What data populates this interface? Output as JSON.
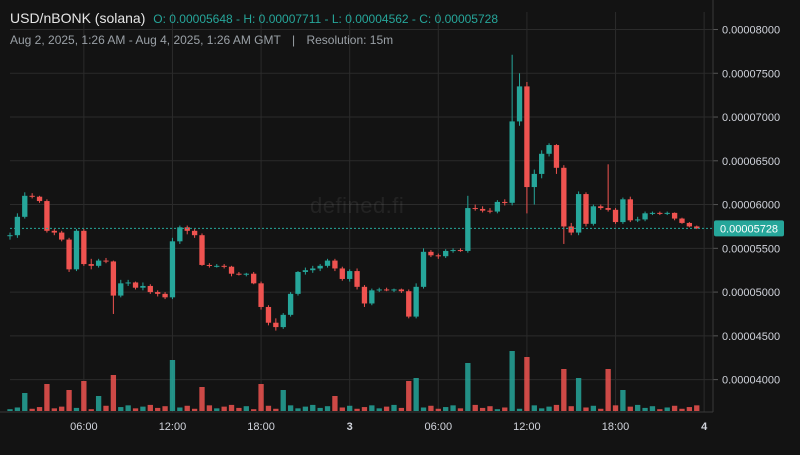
{
  "header": {
    "symbol": "USD/nBONK (solana)",
    "ohlc": "O: 0.00005648 - H: 0.00007711 - L: 0.00004562 - C: 0.00005728",
    "date_range": "Aug 2, 2025, 1:26 AM - Aug 4, 2025, 1:26 AM GMT",
    "separator": "|",
    "resolution": "Resolution: 15m"
  },
  "watermark": "defined.fi",
  "colors": {
    "up": "#26a69a",
    "down": "#ef5350",
    "grid": "#2b2b2b",
    "background": "#131313",
    "axis_text": "#d1d4dc",
    "last_price_bg": "#26a69a"
  },
  "chart_data": {
    "type": "candlestick",
    "title": "USD/nBONK (solana)",
    "y_ticks": [
      "0.00008000",
      "0.00007500",
      "0.00007000",
      "0.00006500",
      "0.00006000",
      "0.00005500",
      "0.00005000",
      "0.00004500",
      "0.00004000"
    ],
    "x_ticks": [
      "06:00",
      "12:00",
      "18:00",
      "3",
      "06:00",
      "12:00",
      "18:00",
      "4"
    ],
    "x_tick_hours": [
      6,
      12,
      18,
      24,
      30,
      36,
      42,
      48
    ],
    "x_range_hours": [
      1.0,
      48.6
    ],
    "ylim": [
      3.63e-05,
      8.2e-05
    ],
    "grid": true,
    "last_price": 5.728e-05,
    "last_price_label": "0.00005728",
    "candles": [
      {
        "t": 1.0,
        "o": 5.648e-05,
        "h": 5.68e-05,
        "l": 5.6e-05,
        "c": 5.65e-05
      },
      {
        "t": 1.5,
        "o": 5.65e-05,
        "h": 5.9e-05,
        "l": 5.62e-05,
        "c": 5.86e-05
      },
      {
        "t": 2.0,
        "o": 5.86e-05,
        "h": 6.14e-05,
        "l": 5.84e-05,
        "c": 6.1e-05
      },
      {
        "t": 2.5,
        "o": 6.1e-05,
        "h": 6.13e-05,
        "l": 6.07e-05,
        "c": 6.09e-05
      },
      {
        "t": 3.0,
        "o": 6.09e-05,
        "h": 6.1e-05,
        "l": 6.02e-05,
        "c": 6.04e-05
      },
      {
        "t": 3.5,
        "o": 6.04e-05,
        "h": 6.06e-05,
        "l": 5.68e-05,
        "c": 5.7e-05
      },
      {
        "t": 4.0,
        "o": 5.7e-05,
        "h": 5.72e-05,
        "l": 5.65e-05,
        "c": 5.68e-05
      },
      {
        "t": 4.5,
        "o": 5.68e-05,
        "h": 5.7e-05,
        "l": 5.58e-05,
        "c": 5.6e-05
      },
      {
        "t": 5.0,
        "o": 5.6e-05,
        "h": 5.62e-05,
        "l": 5.23e-05,
        "c": 5.26e-05
      },
      {
        "t": 5.5,
        "o": 5.26e-05,
        "h": 5.72e-05,
        "l": 5.24e-05,
        "c": 5.7e-05
      },
      {
        "t": 6.0,
        "o": 5.7e-05,
        "h": 5.72e-05,
        "l": 5.3e-05,
        "c": 5.32e-05
      },
      {
        "t": 6.5,
        "o": 5.32e-05,
        "h": 5.38e-05,
        "l": 5.26e-05,
        "c": 5.3e-05
      },
      {
        "t": 7.0,
        "o": 5.3e-05,
        "h": 5.38e-05,
        "l": 5.28e-05,
        "c": 5.36e-05
      },
      {
        "t": 7.5,
        "o": 5.36e-05,
        "h": 5.39e-05,
        "l": 5.33e-05,
        "c": 5.35e-05
      },
      {
        "t": 8.0,
        "o": 5.35e-05,
        "h": 5.36e-05,
        "l": 4.75e-05,
        "c": 4.96e-05
      },
      {
        "t": 8.5,
        "o": 4.96e-05,
        "h": 5.14e-05,
        "l": 4.94e-05,
        "c": 5.1e-05
      },
      {
        "t": 9.0,
        "o": 5.1e-05,
        "h": 5.14e-05,
        "l": 5.07e-05,
        "c": 5.11e-05
      },
      {
        "t": 9.5,
        "o": 5.11e-05,
        "h": 5.12e-05,
        "l": 5.03e-05,
        "c": 5.05e-05
      },
      {
        "t": 10.0,
        "o": 5.05e-05,
        "h": 5.11e-05,
        "l": 5.02e-05,
        "c": 5.07e-05
      },
      {
        "t": 10.5,
        "o": 5.07e-05,
        "h": 5.09e-05,
        "l": 4.98e-05,
        "c": 5e-05
      },
      {
        "t": 11.0,
        "o": 5e-05,
        "h": 5.02e-05,
        "l": 4.95e-05,
        "c": 4.98e-05
      },
      {
        "t": 11.5,
        "o": 4.98e-05,
        "h": 5e-05,
        "l": 4.92e-05,
        "c": 4.94e-05
      },
      {
        "t": 12.0,
        "o": 4.94e-05,
        "h": 5.62e-05,
        "l": 4.92e-05,
        "c": 5.58e-05
      },
      {
        "t": 12.5,
        "o": 5.58e-05,
        "h": 5.76e-05,
        "l": 5.55e-05,
        "c": 5.74e-05
      },
      {
        "t": 13.0,
        "o": 5.74e-05,
        "h": 5.76e-05,
        "l": 5.66e-05,
        "c": 5.7e-05
      },
      {
        "t": 13.5,
        "o": 5.7e-05,
        "h": 5.72e-05,
        "l": 5.62e-05,
        "c": 5.65e-05
      },
      {
        "t": 14.0,
        "o": 5.65e-05,
        "h": 5.67e-05,
        "l": 5.3e-05,
        "c": 5.31e-05
      },
      {
        "t": 14.5,
        "o": 5.31e-05,
        "h": 5.33e-05,
        "l": 5.28e-05,
        "c": 5.3e-05
      },
      {
        "t": 15.0,
        "o": 5.3e-05,
        "h": 5.32e-05,
        "l": 5.28e-05,
        "c": 5.3e-05
      },
      {
        "t": 15.5,
        "o": 5.3e-05,
        "h": 5.32e-05,
        "l": 5.27e-05,
        "c": 5.29e-05
      },
      {
        "t": 16.0,
        "o": 5.29e-05,
        "h": 5.3e-05,
        "l": 5.18e-05,
        "c": 5.21e-05
      },
      {
        "t": 16.5,
        "o": 5.21e-05,
        "h": 5.23e-05,
        "l": 5.19e-05,
        "c": 5.2e-05
      },
      {
        "t": 17.0,
        "o": 5.2e-05,
        "h": 5.22e-05,
        "l": 5.18e-05,
        "c": 5.21e-05
      },
      {
        "t": 17.5,
        "o": 5.21e-05,
        "h": 5.23e-05,
        "l": 5.09e-05,
        "c": 5.1e-05
      },
      {
        "t": 18.0,
        "o": 5.1e-05,
        "h": 5.12e-05,
        "l": 4.8e-05,
        "c": 4.83e-05
      },
      {
        "t": 18.5,
        "o": 4.83e-05,
        "h": 4.85e-05,
        "l": 4.62e-05,
        "c": 4.65e-05
      },
      {
        "t": 19.0,
        "o": 4.65e-05,
        "h": 4.7e-05,
        "l": 4.56e-05,
        "c": 4.6e-05
      },
      {
        "t": 19.5,
        "o": 4.6e-05,
        "h": 4.76e-05,
        "l": 4.58e-05,
        "c": 4.74e-05
      },
      {
        "t": 20.0,
        "o": 4.74e-05,
        "h": 5e-05,
        "l": 4.72e-05,
        "c": 4.98e-05
      },
      {
        "t": 20.5,
        "o": 4.98e-05,
        "h": 5.24e-05,
        "l": 4.96e-05,
        "c": 5.23e-05
      },
      {
        "t": 21.0,
        "o": 5.23e-05,
        "h": 5.28e-05,
        "l": 5.2e-05,
        "c": 5.25e-05
      },
      {
        "t": 21.5,
        "o": 5.25e-05,
        "h": 5.3e-05,
        "l": 5.22e-05,
        "c": 5.27e-05
      },
      {
        "t": 22.0,
        "o": 5.27e-05,
        "h": 5.32e-05,
        "l": 5.24e-05,
        "c": 5.3e-05
      },
      {
        "t": 22.5,
        "o": 5.3e-05,
        "h": 5.38e-05,
        "l": 5.28e-05,
        "c": 5.36e-05
      },
      {
        "t": 23.0,
        "o": 5.36e-05,
        "h": 5.38e-05,
        "l": 5.24e-05,
        "c": 5.27e-05
      },
      {
        "t": 23.5,
        "o": 5.27e-05,
        "h": 5.29e-05,
        "l": 5.13e-05,
        "c": 5.15e-05
      },
      {
        "t": 24.0,
        "o": 5.15e-05,
        "h": 5.26e-05,
        "l": 5.12e-05,
        "c": 5.24e-05
      },
      {
        "t": 24.5,
        "o": 5.24e-05,
        "h": 5.27e-05,
        "l": 5.03e-05,
        "c": 5.06e-05
      },
      {
        "t": 25.0,
        "o": 5.06e-05,
        "h": 5.08e-05,
        "l": 4.83e-05,
        "c": 4.87e-05
      },
      {
        "t": 25.5,
        "o": 4.87e-05,
        "h": 5.04e-05,
        "l": 4.85e-05,
        "c": 5.02e-05
      },
      {
        "t": 26.0,
        "o": 5.02e-05,
        "h": 5.05e-05,
        "l": 5e-05,
        "c": 5.03e-05
      },
      {
        "t": 26.5,
        "o": 5.03e-05,
        "h": 5.05e-05,
        "l": 5.01e-05,
        "c": 5.02e-05
      },
      {
        "t": 27.0,
        "o": 5.02e-05,
        "h": 5.04e-05,
        "l": 5e-05,
        "c": 5.03e-05
      },
      {
        "t": 27.5,
        "o": 5.03e-05,
        "h": 5.04e-05,
        "l": 4.99e-05,
        "c": 5.01e-05
      },
      {
        "t": 28.0,
        "o": 5.01e-05,
        "h": 5.03e-05,
        "l": 4.7e-05,
        "c": 4.72e-05
      },
      {
        "t": 28.5,
        "o": 4.72e-05,
        "h": 5.1e-05,
        "l": 4.7e-05,
        "c": 5.06e-05
      },
      {
        "t": 29.0,
        "o": 5.06e-05,
        "h": 5.5e-05,
        "l": 5.04e-05,
        "c": 5.46e-05
      },
      {
        "t": 29.5,
        "o": 5.46e-05,
        "h": 5.48e-05,
        "l": 5.4e-05,
        "c": 5.42e-05
      },
      {
        "t": 30.0,
        "o": 5.42e-05,
        "h": 5.44e-05,
        "l": 5.38e-05,
        "c": 5.41e-05
      },
      {
        "t": 30.5,
        "o": 5.41e-05,
        "h": 5.49e-05,
        "l": 5.39e-05,
        "c": 5.47e-05
      },
      {
        "t": 31.0,
        "o": 5.47e-05,
        "h": 5.5e-05,
        "l": 5.45e-05,
        "c": 5.48e-05
      },
      {
        "t": 31.5,
        "o": 5.48e-05,
        "h": 5.5e-05,
        "l": 5.46e-05,
        "c": 5.47e-05
      },
      {
        "t": 32.0,
        "o": 5.47e-05,
        "h": 6.1e-05,
        "l": 5.45e-05,
        "c": 5.96e-05
      },
      {
        "t": 32.5,
        "o": 5.96e-05,
        "h": 6e-05,
        "l": 5.93e-05,
        "c": 5.95e-05
      },
      {
        "t": 33.0,
        "o": 5.95e-05,
        "h": 5.98e-05,
        "l": 5.91e-05,
        "c": 5.93e-05
      },
      {
        "t": 33.5,
        "o": 5.93e-05,
        "h": 5.96e-05,
        "l": 5.9e-05,
        "c": 5.92e-05
      },
      {
        "t": 34.0,
        "o": 5.92e-05,
        "h": 6.05e-05,
        "l": 5.9e-05,
        "c": 6.03e-05
      },
      {
        "t": 34.5,
        "o": 6.03e-05,
        "h": 6.06e-05,
        "l": 5.99e-05,
        "c": 6.02e-05
      },
      {
        "t": 35.0,
        "o": 6.02e-05,
        "h": 7.711e-05,
        "l": 5.99e-05,
        "c": 6.95e-05
      },
      {
        "t": 35.5,
        "o": 6.95e-05,
        "h": 7.5e-05,
        "l": 6.9e-05,
        "c": 7.35e-05
      },
      {
        "t": 36.0,
        "o": 7.35e-05,
        "h": 7.4e-05,
        "l": 5.9e-05,
        "c": 6.2e-05
      },
      {
        "t": 36.5,
        "o": 6.2e-05,
        "h": 6.4e-05,
        "l": 6e-05,
        "c": 6.35e-05
      },
      {
        "t": 37.0,
        "o": 6.35e-05,
        "h": 6.62e-05,
        "l": 6.3e-05,
        "c": 6.58e-05
      },
      {
        "t": 37.5,
        "o": 6.58e-05,
        "h": 6.7e-05,
        "l": 6.55e-05,
        "c": 6.68e-05
      },
      {
        "t": 38.0,
        "o": 6.68e-05,
        "h": 6.69e-05,
        "l": 6.35e-05,
        "c": 6.42e-05
      },
      {
        "t": 38.5,
        "o": 6.42e-05,
        "h": 6.45e-05,
        "l": 5.55e-05,
        "c": 5.75e-05
      },
      {
        "t": 39.0,
        "o": 5.75e-05,
        "h": 5.79e-05,
        "l": 5.65e-05,
        "c": 5.68e-05
      },
      {
        "t": 39.5,
        "o": 5.68e-05,
        "h": 6.15e-05,
        "l": 5.65e-05,
        "c": 6.12e-05
      },
      {
        "t": 40.0,
        "o": 6.12e-05,
        "h": 6.14e-05,
        "l": 5.75e-05,
        "c": 5.78e-05
      },
      {
        "t": 40.5,
        "o": 5.78e-05,
        "h": 6e-05,
        "l": 5.76e-05,
        "c": 5.98e-05
      },
      {
        "t": 41.0,
        "o": 5.98e-05,
        "h": 6e-05,
        "l": 5.94e-05,
        "c": 5.96e-05
      },
      {
        "t": 41.5,
        "o": 5.96e-05,
        "h": 6.46e-05,
        "l": 5.92e-05,
        "c": 5.94e-05
      },
      {
        "t": 42.0,
        "o": 5.94e-05,
        "h": 5.96e-05,
        "l": 5.78e-05,
        "c": 5.8e-05
      },
      {
        "t": 42.5,
        "o": 5.8e-05,
        "h": 6.08e-05,
        "l": 5.78e-05,
        "c": 6.06e-05
      },
      {
        "t": 43.0,
        "o": 6.06e-05,
        "h": 6.09e-05,
        "l": 5.8e-05,
        "c": 5.82e-05
      },
      {
        "t": 43.5,
        "o": 5.82e-05,
        "h": 5.86e-05,
        "l": 5.8e-05,
        "c": 5.83e-05
      },
      {
        "t": 44.0,
        "o": 5.83e-05,
        "h": 5.92e-05,
        "l": 5.81e-05,
        "c": 5.9e-05
      },
      {
        "t": 44.5,
        "o": 5.9e-05,
        "h": 5.92e-05,
        "l": 5.88e-05,
        "c": 5.905e-05
      },
      {
        "t": 45.0,
        "o": 5.905e-05,
        "h": 5.92e-05,
        "l": 5.88e-05,
        "c": 5.9e-05
      },
      {
        "t": 45.5,
        "o": 5.9e-05,
        "h": 5.92e-05,
        "l": 5.88e-05,
        "c": 5.905e-05
      },
      {
        "t": 46.0,
        "o": 5.905e-05,
        "h": 5.91e-05,
        "l": 5.82e-05,
        "c": 5.84e-05
      },
      {
        "t": 46.5,
        "o": 5.84e-05,
        "h": 5.85e-05,
        "l": 5.78e-05,
        "c": 5.79e-05
      },
      {
        "t": 47.0,
        "o": 5.79e-05,
        "h": 5.8e-05,
        "l": 5.74e-05,
        "c": 5.75e-05
      },
      {
        "t": 47.5,
        "o": 5.75e-05,
        "h": 5.76e-05,
        "l": 5.72e-05,
        "c": 5.728e-05
      }
    ],
    "volume_spikes": [
      {
        "t": 2.0,
        "v": 0.3,
        "up": true
      },
      {
        "t": 3.5,
        "v": 0.45,
        "up": false
      },
      {
        "t": 5.0,
        "v": 0.35,
        "up": false
      },
      {
        "t": 6.0,
        "v": 0.5,
        "up": false
      },
      {
        "t": 7.0,
        "v": 0.25,
        "up": true
      },
      {
        "t": 8.0,
        "v": 0.6,
        "up": false
      },
      {
        "t": 12.0,
        "v": 0.85,
        "up": true
      },
      {
        "t": 14.0,
        "v": 0.4,
        "up": false
      },
      {
        "t": 18.0,
        "v": 0.45,
        "up": false
      },
      {
        "t": 19.5,
        "v": 0.35,
        "up": true
      },
      {
        "t": 23.0,
        "v": 0.25,
        "up": false
      },
      {
        "t": 28.0,
        "v": 0.5,
        "up": false
      },
      {
        "t": 28.5,
        "v": 0.55,
        "up": true
      },
      {
        "t": 32.0,
        "v": 0.8,
        "up": true
      },
      {
        "t": 35.0,
        "v": 1.0,
        "up": true
      },
      {
        "t": 36.0,
        "v": 0.9,
        "up": false
      },
      {
        "t": 38.5,
        "v": 0.7,
        "up": false
      },
      {
        "t": 39.5,
        "v": 0.55,
        "up": true
      },
      {
        "t": 41.5,
        "v": 0.7,
        "up": false
      },
      {
        "t": 42.5,
        "v": 0.35,
        "up": true
      }
    ]
  }
}
